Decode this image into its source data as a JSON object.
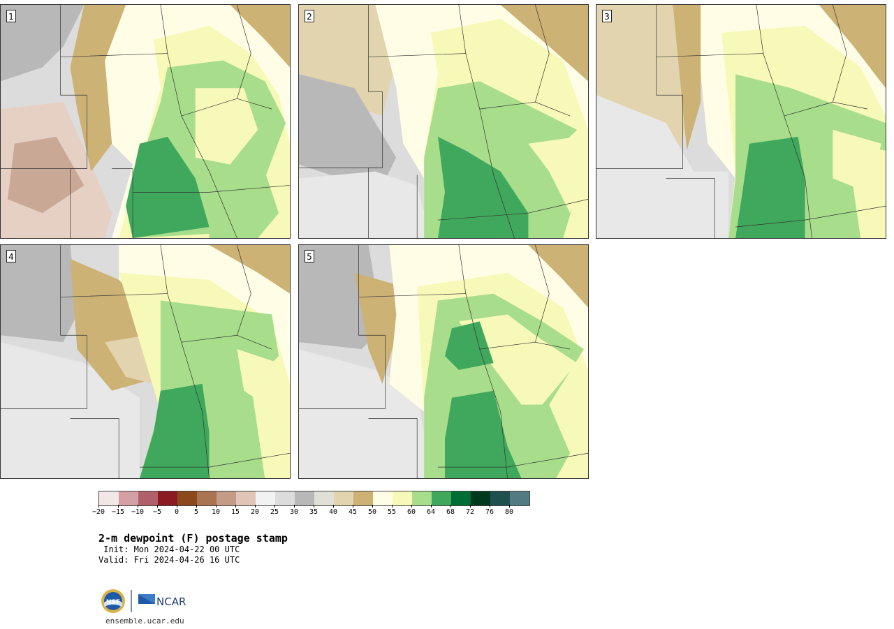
{
  "panels": [
    {
      "label": "1"
    },
    {
      "label": "2"
    },
    {
      "label": "3"
    },
    {
      "label": "4"
    },
    {
      "label": "5"
    }
  ],
  "colorbar": {
    "colors": [
      "#f2e6e6",
      "#d4a0a6",
      "#b06068",
      "#8c1a24",
      "#8a4a1c",
      "#aa7452",
      "#c49c86",
      "#e0c4b6",
      "#f2f2f2",
      "#dcdcdc",
      "#b8b8b8",
      "#e0e0d6",
      "#e2d4ae",
      "#cdb276",
      "#fffde6",
      "#f7f9b8",
      "#a8dd8c",
      "#40a85c",
      "#006d32",
      "#003a1e",
      "#1f5050",
      "#527a82"
    ],
    "ticks": [
      "−20",
      "−15",
      "−10",
      "−5",
      "0",
      "5",
      "10",
      "15",
      "20",
      "25",
      "30",
      "35",
      "40",
      "45",
      "50",
      "55",
      "60",
      "64",
      "68",
      "72",
      "76",
      "80"
    ]
  },
  "title": "2-m dewpoint (F) postage stamp",
  "init_label": " Init: Mon 2024-04-22 00 UTC",
  "valid_label": "Valid: Fri 2024-04-26 16 UTC",
  "logo": {
    "org1": "NSF",
    "org2": "NCAR"
  },
  "site": "ensemble.ucar.edu"
}
